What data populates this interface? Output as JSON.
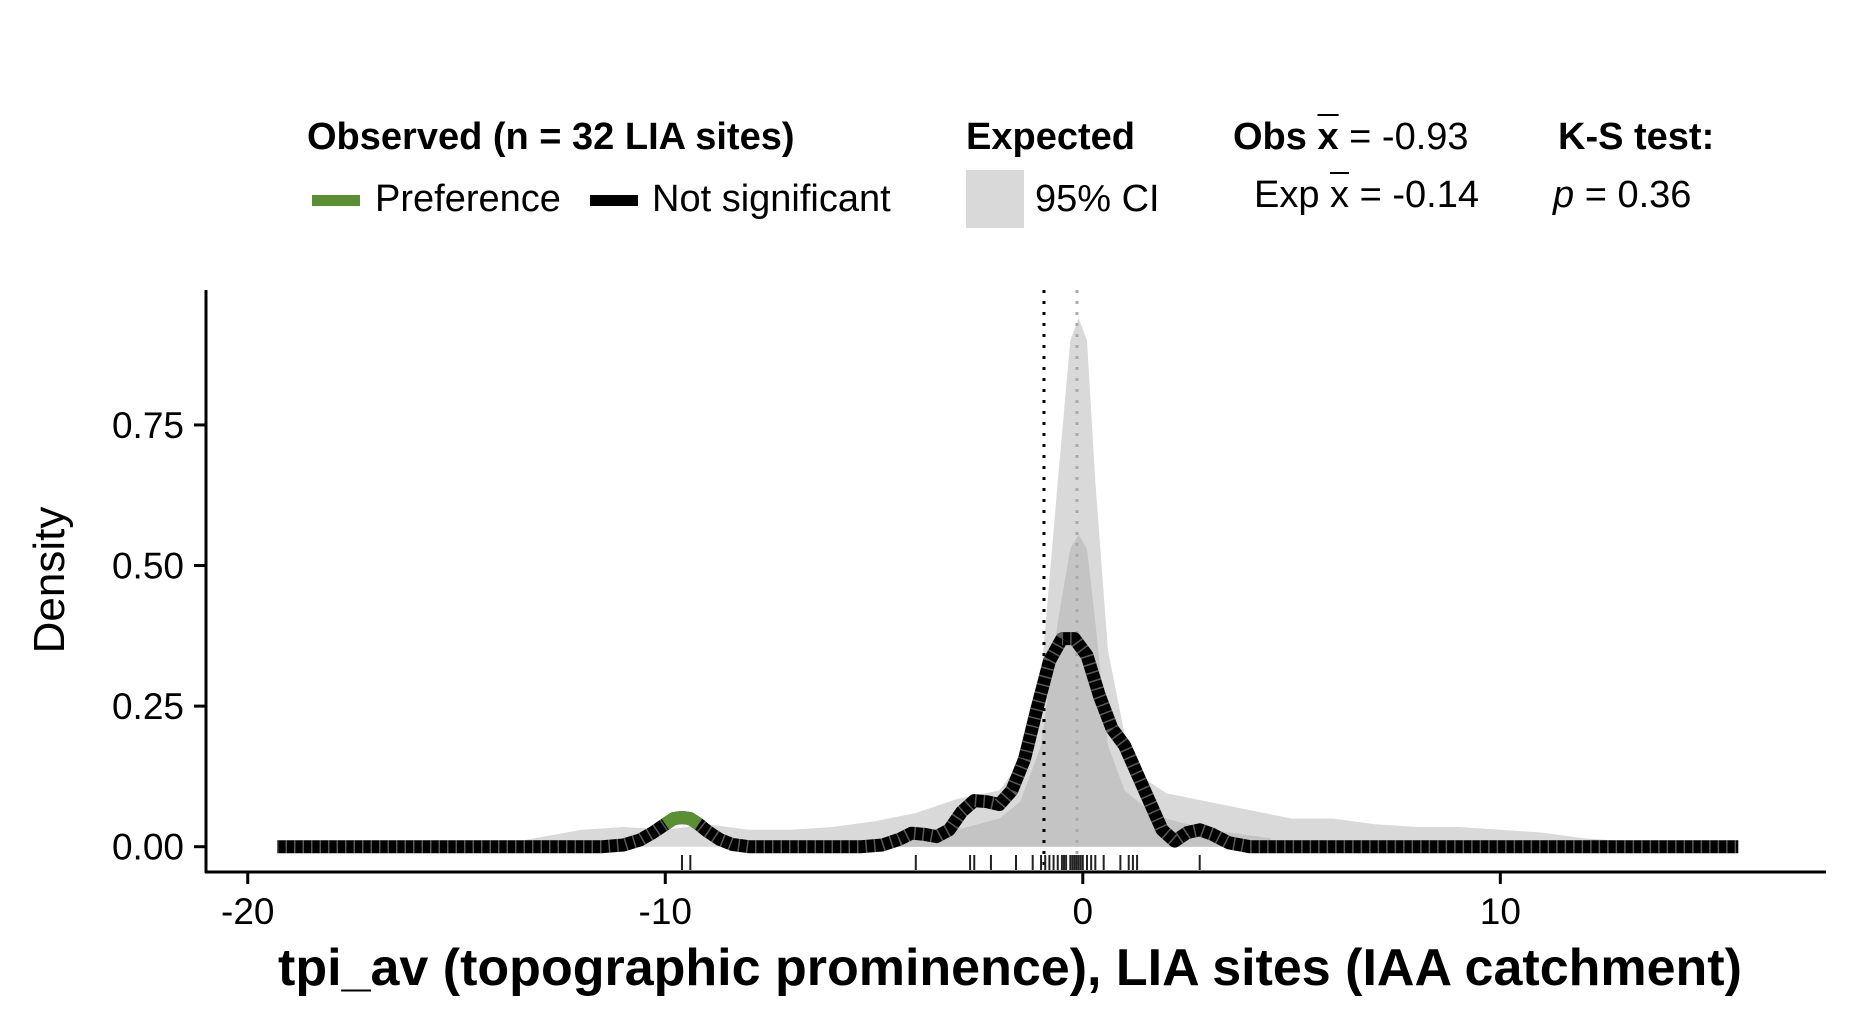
{
  "legend": {
    "observed_title": "Observed (n = 32 LIA sites)",
    "preference_label": "Preference",
    "not_significant_label": "Not significant",
    "expected_title": "Expected",
    "ci_label": "95% CI",
    "obs_mean_prefix": "Obs ",
    "obs_mean_symbol": "x",
    "obs_mean_value": " = -0.93",
    "exp_mean_prefix": "Exp ",
    "exp_mean_symbol": "x",
    "exp_mean_value": " = -0.14",
    "ks_title": "K-S test:",
    "ks_p_symbol": "p",
    "ks_p_value": " = 0.36"
  },
  "colors": {
    "preference": "#5b9032",
    "not_significant": "#000000",
    "ci_band": "#d9d9d9",
    "ci_inner": "#c4c4c4",
    "expected_mean_line": "#aaaaaa"
  },
  "chart_data": {
    "type": "line",
    "xlabel": "tpi_av (topographic prominence), LIA sites (IAA catchment)",
    "ylabel": "Density",
    "xlim": [
      -21,
      17.8
    ],
    "ylim": [
      -0.045,
      0.99
    ],
    "x_ticks": [
      -20,
      -10,
      0,
      10
    ],
    "x_tick_labels": [
      "-20",
      "-10",
      "0",
      "10"
    ],
    "y_ticks": [
      0,
      0.25,
      0.5,
      0.75
    ],
    "y_tick_labels": [
      "0.00",
      "0.25",
      "0.50",
      "0.75"
    ],
    "observed_mean": -0.93,
    "expected_mean": -0.14,
    "ks_p": 0.36,
    "observed_density": {
      "name": "Observed",
      "x": [
        -19.3,
        -11.5,
        -11.0,
        -10.6,
        -10.3,
        -10.0,
        -9.8,
        -9.6,
        -9.4,
        -9.2,
        -9.0,
        -8.7,
        -8.4,
        -8.0,
        -5.3,
        -4.8,
        -4.4,
        -4.1,
        -3.8,
        -3.5,
        -3.2,
        -2.9,
        -2.6,
        -2.3,
        -2.0,
        -1.7,
        -1.4,
        -1.1,
        -0.8,
        -0.5,
        -0.2,
        0.1,
        0.4,
        0.7,
        1.0,
        1.3,
        1.6,
        1.9,
        2.2,
        2.5,
        2.8,
        3.1,
        3.5,
        4.0,
        15.7
      ],
      "y": [
        0,
        0,
        0.003,
        0.012,
        0.025,
        0.04,
        0.05,
        0.052,
        0.05,
        0.04,
        0.028,
        0.013,
        0.004,
        0,
        0,
        0.003,
        0.013,
        0.024,
        0.022,
        0.018,
        0.03,
        0.062,
        0.082,
        0.08,
        0.075,
        0.1,
        0.155,
        0.245,
        0.33,
        0.37,
        0.37,
        0.34,
        0.268,
        0.21,
        0.18,
        0.13,
        0.08,
        0.03,
        0.01,
        0.025,
        0.03,
        0.022,
        0.007,
        0,
        0
      ]
    },
    "preference_segment": {
      "name": "Preference",
      "x": [
        -10.0,
        -9.8,
        -9.6,
        -9.4,
        -9.2
      ],
      "y": [
        0.04,
        0.05,
        0.052,
        0.05,
        0.04
      ]
    },
    "expected_ci_outer": {
      "x": [
        -13.5,
        -12,
        -11,
        -10,
        -9,
        -8,
        -7,
        -6,
        -5,
        -4,
        -3,
        -2,
        -1.5,
        -1,
        -0.6,
        -0.3,
        -0.1,
        0.1,
        0.3,
        0.6,
        1.0,
        1.5,
        2,
        3,
        4,
        5,
        6,
        7,
        8,
        9,
        10,
        11,
        12,
        13
      ],
      "upper": [
        0.01,
        0.03,
        0.035,
        0.03,
        0.04,
        0.03,
        0.03,
        0.035,
        0.045,
        0.06,
        0.085,
        0.1,
        0.15,
        0.3,
        0.65,
        0.9,
        0.94,
        0.9,
        0.65,
        0.35,
        0.2,
        0.12,
        0.095,
        0.08,
        0.065,
        0.05,
        0.05,
        0.04,
        0.035,
        0.035,
        0.03,
        0.025,
        0.015,
        0.01
      ],
      "lower": [
        0,
        0,
        0,
        0,
        0,
        0,
        0,
        0,
        0,
        0,
        0,
        0,
        0,
        0,
        0,
        0,
        0,
        0,
        0,
        0,
        0,
        0,
        0,
        0,
        0,
        0,
        0,
        0,
        0,
        0,
        0,
        0,
        0,
        0
      ]
    },
    "expected_ci_inner": {
      "x": [
        -4.5,
        -3,
        -2,
        -1.5,
        -1,
        -0.6,
        -0.3,
        -0.1,
        0.1,
        0.3,
        0.6,
        1.0,
        1.5,
        2,
        3,
        4.5
      ],
      "upper": [
        0.02,
        0.03,
        0.05,
        0.08,
        0.18,
        0.4,
        0.53,
        0.555,
        0.53,
        0.4,
        0.18,
        0.1,
        0.07,
        0.05,
        0.03,
        0.015
      ],
      "lower": [
        0,
        0,
        0,
        0,
        0,
        0,
        0,
        0,
        0,
        0,
        0,
        0,
        0,
        0,
        0,
        0
      ]
    },
    "observed_rug": [
      -9.6,
      -9.4,
      -4.0,
      -2.7,
      -2.6,
      -2.2,
      -1.6,
      -1.2,
      -1.0,
      -0.9,
      -0.8,
      -0.7,
      -0.6,
      -0.5,
      -0.45,
      -0.4,
      -0.3,
      -0.25,
      -0.2,
      -0.15,
      -0.1,
      -0.05,
      0.0,
      0.1,
      0.2,
      0.3,
      0.5,
      0.9,
      1.1,
      1.2,
      1.3,
      2.8
    ]
  }
}
